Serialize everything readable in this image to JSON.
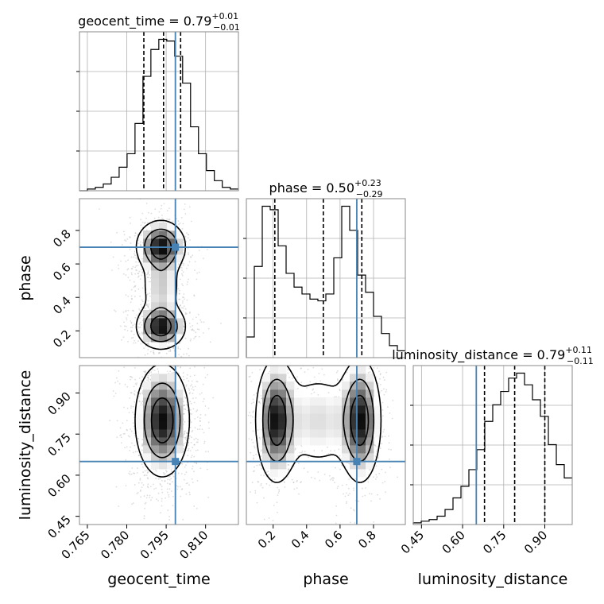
{
  "chart_data": {
    "type": "corner",
    "parameters": [
      "geocent_time",
      "phase",
      "luminosity_distance"
    ],
    "truths": {
      "geocent_time": 0.7985,
      "phase": 0.7,
      "luminosity_distance": 0.65
    },
    "titles": {
      "geocent_time": {
        "label": "geocent_time = 0.79",
        "plus": "+0.01",
        "minus": "−0.01"
      },
      "phase": {
        "label": "phase = 0.50",
        "plus": "+0.23",
        "minus": "−0.29"
      },
      "luminosity_distance": {
        "label": "luminosity_distance = 0.79",
        "plus": "+0.11",
        "minus": "−0.11"
      }
    },
    "axis_labels": {
      "x": [
        "geocent_time",
        "phase",
        "luminosity_distance"
      ],
      "y": [
        "phase",
        "luminosity_distance"
      ]
    },
    "ranges": {
      "geocent_time": [
        0.762,
        0.8225
      ],
      "phase": [
        0.04,
        0.99
      ],
      "luminosity_distance": [
        0.42,
        1.0
      ]
    },
    "ticks": {
      "geocent_time": [
        "0.765",
        "0.780",
        "0.795",
        "0.810"
      ],
      "phase": [
        "0.2",
        "0.4",
        "0.6",
        "0.8"
      ],
      "phase_y": [
        "0.2",
        "0.4",
        "0.6",
        "0.8"
      ],
      "luminosity_distance": [
        "0.45",
        "0.60",
        "0.75",
        "0.90"
      ]
    },
    "quantiles": {
      "geocent_time": [
        0.7865,
        0.794,
        0.8005
      ],
      "phase": [
        0.21,
        0.5,
        0.73
      ],
      "luminosity_distance": [
        0.68,
        0.79,
        0.9
      ]
    },
    "histograms": {
      "geocent_time": {
        "x_start": 0.762,
        "bin_width": 0.00302,
        "values": [
          0,
          1,
          2,
          4,
          8,
          14,
          22,
          40,
          68,
          84,
          90,
          89,
          80,
          64,
          38,
          22,
          12,
          6,
          2,
          1
        ]
      },
      "phase": {
        "x_start": 0.04,
        "bin_width": 0.0475,
        "values": [
          12,
          53,
          88,
          86,
          65,
          49,
          41,
          37,
          34,
          33,
          37,
          58,
          88,
          74,
          48,
          38,
          24,
          14,
          7,
          4
        ]
      },
      "luminosity_distance": {
        "x_start": 0.42,
        "bin_width": 0.029,
        "values": [
          1,
          2,
          3,
          5,
          9,
          16,
          23,
          33,
          45,
          62,
          72,
          80,
          88,
          91,
          84,
          75,
          65,
          48,
          36,
          28
        ]
      }
    },
    "densities": {
      "phase_vs_geocent_time": [
        {
          "x": 0.793,
          "y": 0.705,
          "amp": 1.0,
          "sx": 0.0045,
          "sy": 0.075
        },
        {
          "x": 0.793,
          "y": 0.225,
          "amp": 1.0,
          "sx": 0.0045,
          "sy": 0.065
        },
        {
          "x": 0.793,
          "y": 0.465,
          "amp": 0.35,
          "sx": 0.004,
          "sy": 0.11
        }
      ],
      "luminosity_distance_vs_geocent_time": [
        {
          "x": 0.7935,
          "y": 0.8,
          "amp": 1.0,
          "sx": 0.005,
          "sy": 0.1
        }
      ],
      "luminosity_distance_vs_phase": [
        {
          "x": 0.22,
          "y": 0.8,
          "amp": 1.0,
          "sx": 0.06,
          "sy": 0.11
        },
        {
          "x": 0.72,
          "y": 0.8,
          "amp": 1.0,
          "sx": 0.06,
          "sy": 0.11
        },
        {
          "x": 0.47,
          "y": 0.8,
          "amp": 0.3,
          "sx": 0.13,
          "sy": 0.1
        }
      ]
    },
    "colors": {
      "truth": "#4682b4",
      "line": "#000000",
      "grid": "#b0b0b0",
      "scatter": "#9e9e9e"
    },
    "grid": true
  }
}
